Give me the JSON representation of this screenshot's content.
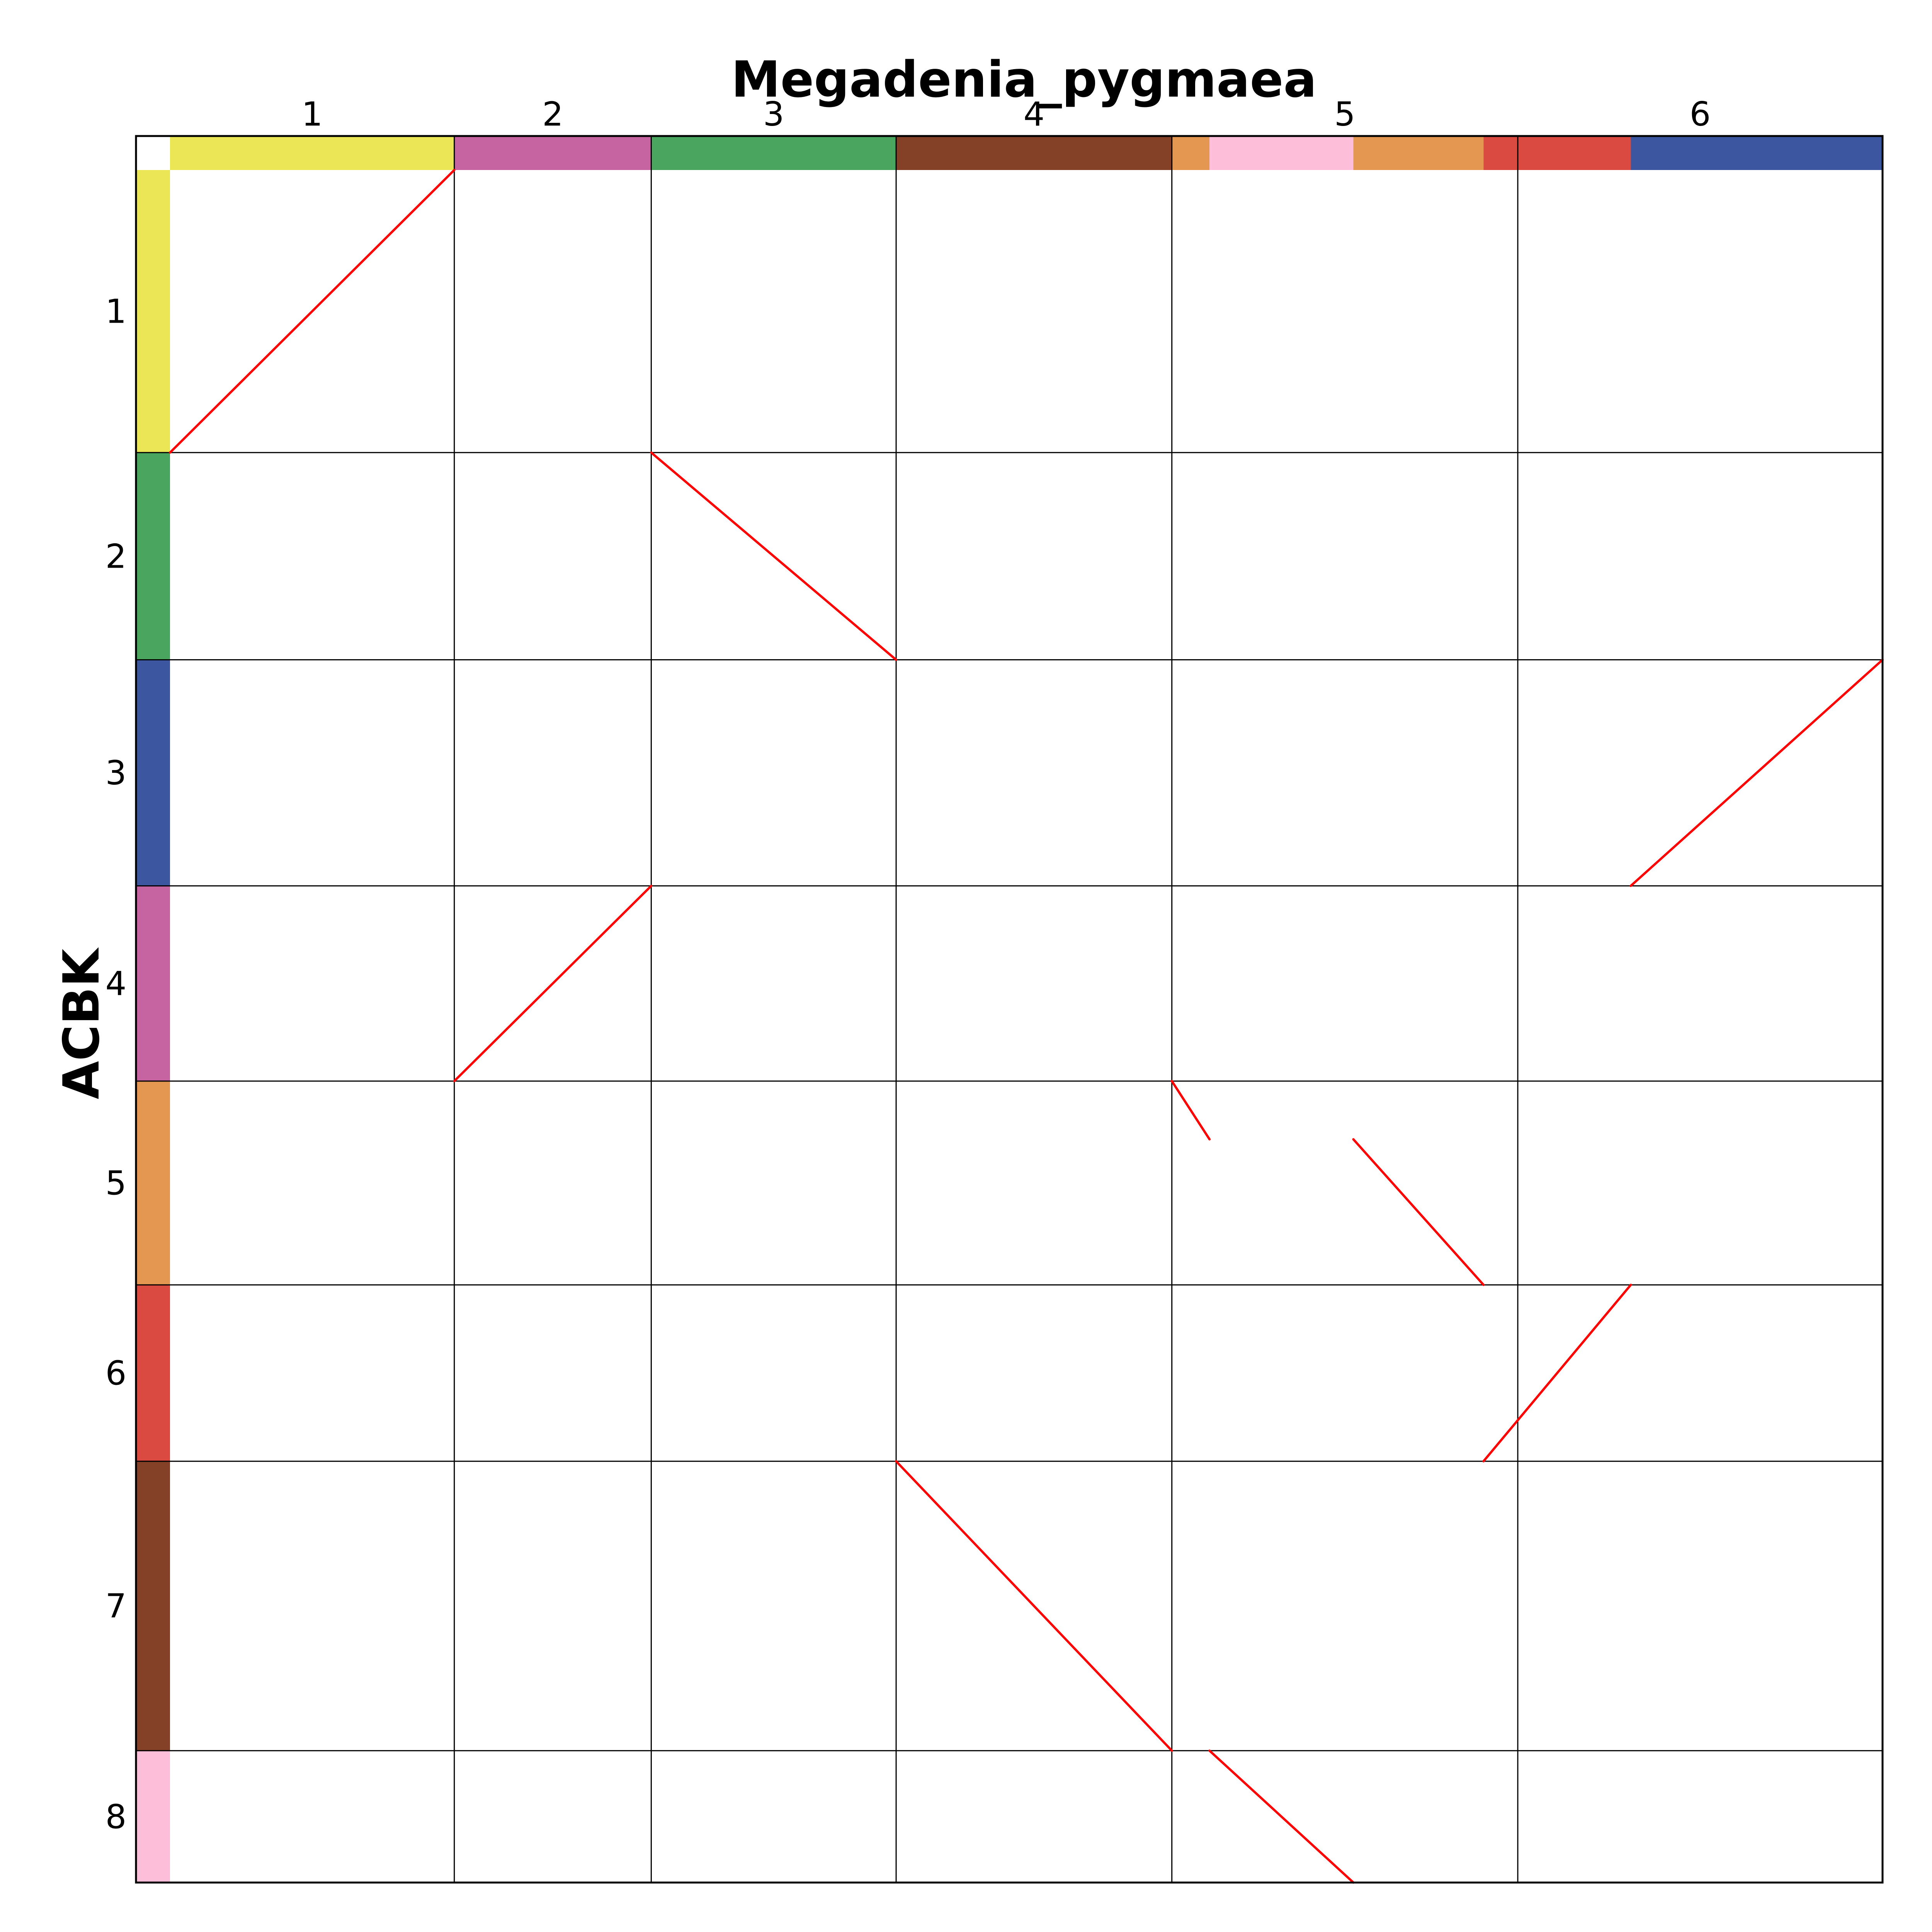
{
  "chart_data": {
    "type": "dotplot",
    "title": "Megadenia_pygmaea",
    "xlabel": "Megadenia_pygmaea",
    "ylabel": "ACBK",
    "x_chromosomes": [
      {
        "label": "1",
        "start": 0.0,
        "end": 0.166
      },
      {
        "label": "2",
        "start": 0.166,
        "end": 0.281
      },
      {
        "label": "3",
        "start": 0.281,
        "end": 0.424
      },
      {
        "label": "4",
        "start": 0.424,
        "end": 0.585
      },
      {
        "label": "5",
        "start": 0.585,
        "end": 0.787
      },
      {
        "label": "6",
        "start": 0.787,
        "end": 1.0
      }
    ],
    "y_chromosomes": [
      {
        "label": "1",
        "start": 0.0,
        "end": 0.165
      },
      {
        "label": "2",
        "start": 0.165,
        "end": 0.286
      },
      {
        "label": "3",
        "start": 0.286,
        "end": 0.418
      },
      {
        "label": "4",
        "start": 0.418,
        "end": 0.532
      },
      {
        "label": "5",
        "start": 0.532,
        "end": 0.651
      },
      {
        "label": "6",
        "start": 0.651,
        "end": 0.754
      },
      {
        "label": "7",
        "start": 0.754,
        "end": 0.923
      },
      {
        "label": "8",
        "start": 0.923,
        "end": 1.0
      }
    ],
    "x_blocks": [
      {
        "start": 0.0,
        "end": 0.166,
        "color": "#ebe655"
      },
      {
        "start": 0.166,
        "end": 0.281,
        "color": "#c564a0"
      },
      {
        "start": 0.281,
        "end": 0.424,
        "color": "#4aa55f"
      },
      {
        "start": 0.424,
        "end": 0.585,
        "color": "#844127"
      },
      {
        "start": 0.585,
        "end": 0.607,
        "color": "#e39750"
      },
      {
        "start": 0.607,
        "end": 0.691,
        "color": "#fcbed9"
      },
      {
        "start": 0.691,
        "end": 0.767,
        "color": "#e39750"
      },
      {
        "start": 0.767,
        "end": 0.853,
        "color": "#db4a40"
      },
      {
        "start": 0.853,
        "end": 1.0,
        "color": "#3c57a0"
      }
    ],
    "y_blocks": [
      {
        "start": 0.0,
        "end": 0.165,
        "color": "#ebe655"
      },
      {
        "start": 0.165,
        "end": 0.286,
        "color": "#4aa55f"
      },
      {
        "start": 0.286,
        "end": 0.418,
        "color": "#3c57a0"
      },
      {
        "start": 0.418,
        "end": 0.532,
        "color": "#c564a0"
      },
      {
        "start": 0.532,
        "end": 0.651,
        "color": "#e39750"
      },
      {
        "start": 0.651,
        "end": 0.754,
        "color": "#db4a40"
      },
      {
        "start": 0.754,
        "end": 0.923,
        "color": "#844127"
      },
      {
        "start": 0.923,
        "end": 1.0,
        "color": "#fcbed9"
      }
    ],
    "synteny_segments": [
      {
        "x1": 0.0,
        "y1": 0.165,
        "x2": 0.166,
        "y2": 0.0
      },
      {
        "x1": 0.281,
        "y1": 0.165,
        "x2": 0.424,
        "y2": 0.286
      },
      {
        "x1": 0.853,
        "y1": 0.418,
        "x2": 1.0,
        "y2": 0.286
      },
      {
        "x1": 0.166,
        "y1": 0.532,
        "x2": 0.281,
        "y2": 0.418
      },
      {
        "x1": 0.585,
        "y1": 0.532,
        "x2": 0.607,
        "y2": 0.566
      },
      {
        "x1": 0.691,
        "y1": 0.566,
        "x2": 0.767,
        "y2": 0.651
      },
      {
        "x1": 0.767,
        "y1": 0.754,
        "x2": 0.853,
        "y2": 0.651
      },
      {
        "x1": 0.424,
        "y1": 0.754,
        "x2": 0.585,
        "y2": 0.923
      },
      {
        "x1": 0.607,
        "y1": 0.923,
        "x2": 0.691,
        "y2": 1.0
      }
    ],
    "colors": {
      "dots": "#ff0000",
      "grid": "#000000"
    }
  }
}
